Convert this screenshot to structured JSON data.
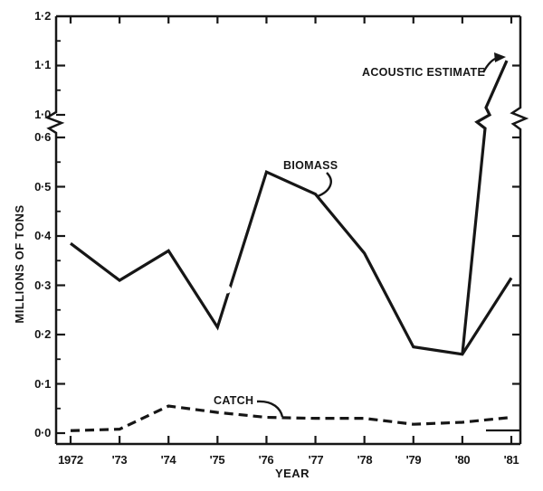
{
  "figure": {
    "background": "#ffffff",
    "ink": "#161616"
  },
  "chart_data": {
    "type": "line",
    "title": "",
    "xlabel": "YEAR",
    "ylabel": "MILLIONS OF TONS",
    "grid": false,
    "y_axis": {
      "break_between": [
        0.6,
        1.0
      ],
      "major_ticks": [
        {
          "label": "0·0",
          "value": 0.0
        },
        {
          "label": "0·1",
          "value": 0.1
        },
        {
          "label": "0·2",
          "value": 0.2
        },
        {
          "label": "0·3",
          "value": 0.3
        },
        {
          "label": "0·4",
          "value": 0.4
        },
        {
          "label": "0·5",
          "value": 0.5
        },
        {
          "label": "0·6",
          "value": 0.6
        },
        {
          "label": "1·0",
          "value": 1.0
        },
        {
          "label": "1·1",
          "value": 1.1
        },
        {
          "label": "1·2",
          "value": 1.2
        }
      ],
      "minor_tick_values": [
        0.05,
        0.15,
        0.25,
        0.35,
        0.45,
        0.55,
        1.05,
        1.15
      ]
    },
    "x_axis": {
      "ticks": [
        {
          "label": "1972",
          "year": 1972
        },
        {
          "label": "'73",
          "year": 1973
        },
        {
          "label": "'74",
          "year": 1974
        },
        {
          "label": "'75",
          "year": 1975
        },
        {
          "label": "'76",
          "year": 1976
        },
        {
          "label": "'77",
          "year": 1977
        },
        {
          "label": "'78",
          "year": 1978
        },
        {
          "label": "'79",
          "year": 1979
        },
        {
          "label": "'80",
          "year": 1980
        },
        {
          "label": "'81",
          "year": 1981
        }
      ]
    },
    "series": [
      {
        "name": "BIOMASS",
        "style": "solid",
        "years": [
          1972,
          1973,
          1974,
          1975,
          1976,
          1977,
          1978,
          1979,
          1980,
          1981
        ],
        "values": [
          0.385,
          0.31,
          0.37,
          0.215,
          0.53,
          0.485,
          0.365,
          0.175,
          0.16,
          0.315
        ]
      },
      {
        "name": "CATCH",
        "style": "dashed",
        "years": [
          1972,
          1973,
          1974,
          1975,
          1976,
          1977,
          1978,
          1979,
          1980,
          1981
        ],
        "values": [
          0.005,
          0.008,
          0.055,
          0.042,
          0.032,
          0.03,
          0.03,
          0.018,
          0.022,
          0.032
        ]
      },
      {
        "name": "ACOUSTIC ESTIMATE",
        "style": "solid",
        "years": [
          1980,
          1981
        ],
        "values": [
          0.16,
          1.11
        ],
        "note": "rises through the axis break to 1.11 at 1981"
      }
    ]
  }
}
